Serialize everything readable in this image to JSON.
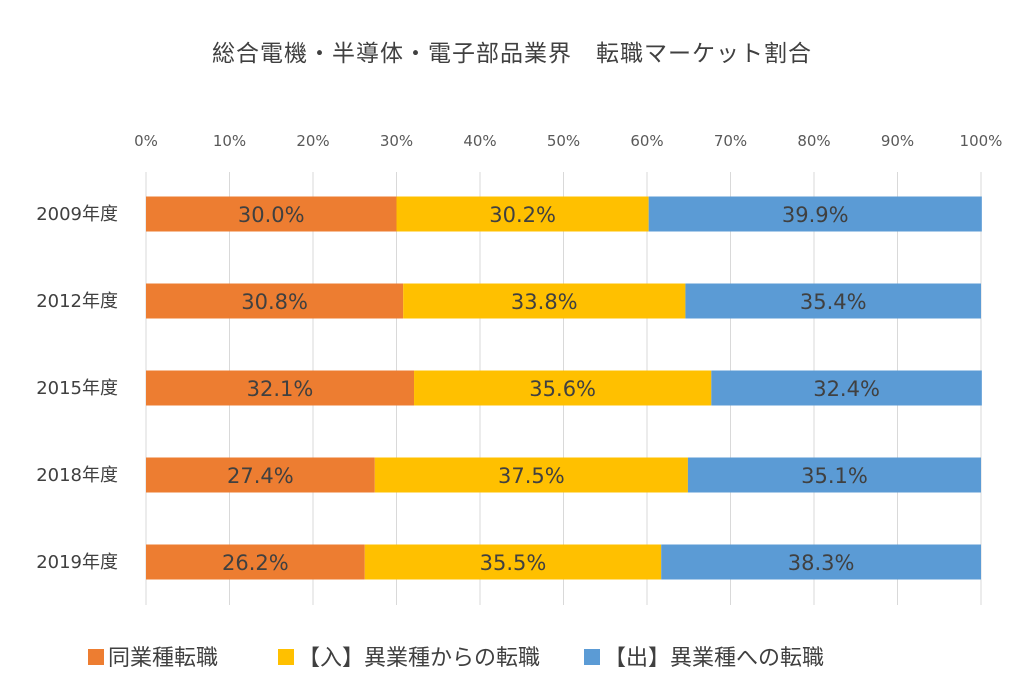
{
  "chart_data": {
    "type": "bar",
    "orientation": "horizontal",
    "stacked": true,
    "percent_stacked": true,
    "title": "総合電機・半導体・電子部品業界　転職マーケット割合",
    "xlabel": "",
    "ylabel": "",
    "xlim": [
      0,
      100
    ],
    "x_ticks": [
      "0%",
      "10%",
      "20%",
      "30%",
      "40%",
      "50%",
      "60%",
      "70%",
      "80%",
      "90%",
      "100%"
    ],
    "grid": true,
    "legend_position": "bottom",
    "categories": [
      "2009年度",
      "2012年度",
      "2015年度",
      "2018年度",
      "2019年度"
    ],
    "series": [
      {
        "name": "同業種転職",
        "color": "#ED7D31",
        "values": [
          30.0,
          30.8,
          32.1,
          27.4,
          26.2
        ],
        "labels": [
          "30.0%",
          "30.8%",
          "32.1%",
          "27.4%",
          "26.2%"
        ]
      },
      {
        "name": "【入】異業種からの転職",
        "color": "#FFC000",
        "values": [
          30.2,
          33.8,
          35.6,
          37.5,
          35.5
        ],
        "labels": [
          "30.2%",
          "33.8%",
          "35.6%",
          "37.5%",
          "35.5%"
        ]
      },
      {
        "name": "【出】異業種への転職",
        "color": "#5B9BD5",
        "values": [
          39.9,
          35.4,
          32.4,
          35.1,
          38.3
        ],
        "labels": [
          "39.9%",
          "35.4%",
          "32.4%",
          "35.1%",
          "38.3%"
        ]
      }
    ]
  }
}
